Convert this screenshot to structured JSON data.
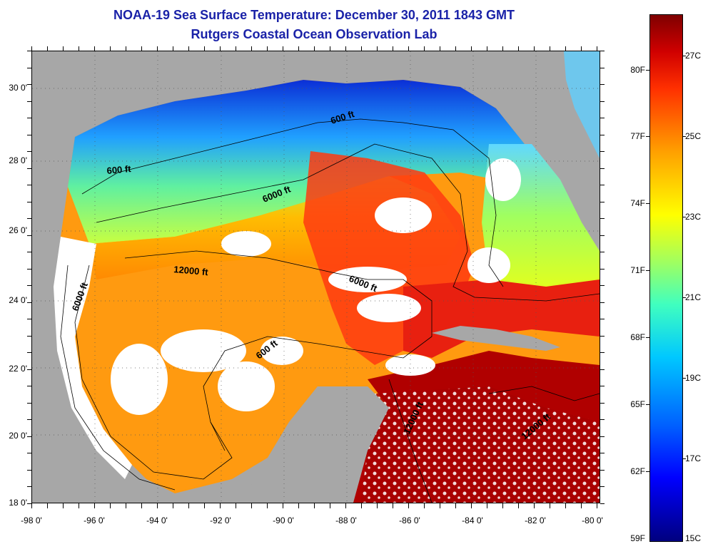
{
  "header": {
    "title": "NOAA-19 Sea Surface Temperature:  December 30, 2011 1843 GMT",
    "subtitle": "Rutgers Coastal Ocean Observation Lab"
  },
  "map": {
    "x_ticks": [
      "-98 0'",
      "-96 0'",
      "-94 0'",
      "-92 0'",
      "-90 0'",
      "-88 0'",
      "-86 0'",
      "-84 0'",
      "-82 0'",
      "-80 0'"
    ],
    "y_ticks": [
      "18 0'",
      "20 0'",
      "22 0'",
      "24 0'",
      "26 0'",
      "28 0'",
      "30 0'"
    ],
    "contour_labels": [
      "600 ft",
      "600 ft",
      "6000 ft",
      "12000 ft",
      "6000 ft",
      "6000 ft",
      "600 ft",
      "12000 ft",
      "12000 ft"
    ],
    "colors": {
      "land": "#a7a7a7",
      "cloud": "#ffffff",
      "cold": "#0a2fd0",
      "warm": "#d01010"
    }
  },
  "colorbar": {
    "fahrenheit_labels": [
      "80F",
      "77F",
      "74F",
      "71F",
      "68F",
      "65F",
      "62F",
      "59F"
    ],
    "celsius_labels": [
      "27C",
      "25C",
      "23C",
      "21C",
      "19C",
      "17C",
      "15C"
    ]
  }
}
